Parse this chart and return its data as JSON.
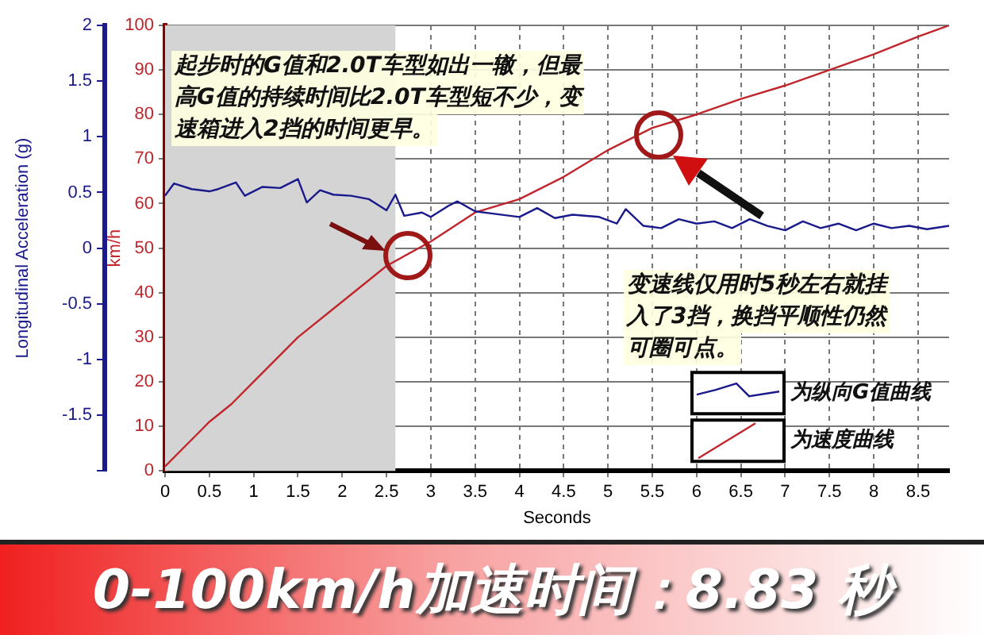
{
  "chart_data": {
    "type": "line",
    "title": "0-100km/h加速时间：8.83 秒",
    "xlabel": "Seconds",
    "ylabel": "Longitudinal Acceleration (g)",
    "y2label": "km/h",
    "xlim": [
      0,
      8.85
    ],
    "xticks": [
      0,
      0.5,
      1,
      1.5,
      2,
      2.5,
      3,
      3.5,
      4,
      4.5,
      5,
      5.5,
      6,
      6.5,
      7,
      7.5,
      8,
      8.5
    ],
    "ylim": [
      -2,
      2
    ],
    "yticks": [
      {
        "value": -2,
        "label": null
      },
      -1.5,
      -1,
      -0.5,
      0,
      0.5,
      1,
      1.5,
      2
    ],
    "y2lim": [
      0,
      100
    ],
    "y2ticks": [
      0,
      10,
      20,
      30,
      40,
      50,
      60,
      70,
      80,
      90,
      100
    ],
    "grid": true,
    "legend": "bottom right",
    "marker": "none",
    "line_style": "solid",
    "bands": [
      {
        "axis": "x",
        "from": 0,
        "to": 2.6,
        "color": "#d4d4d4"
      }
    ],
    "annotations": [
      "起步时的G值和2.0T车型如出一辙，但最高G值的持续时间比2.0T车型短不少，变速箱进入2挡的时间更早。",
      "变速线仅用时5秒左右就挂入了3挡，换挡平顺性仍然可圈可点。"
    ],
    "series": [
      {
        "name": "为纵向G值曲线",
        "color": "#1a1a8c",
        "x": [
          0,
          0.1,
          0.3,
          0.5,
          0.6,
          0.8,
          0.9,
          1.1,
          1.3,
          1.5,
          1.6,
          1.75,
          1.9,
          2.1,
          2.3,
          2.5,
          2.6,
          2.7,
          2.9,
          3,
          3.2,
          3.3,
          3.5,
          3.7,
          4,
          4.2,
          4.4,
          4.6,
          4.9,
          5.1,
          5.2,
          5.4,
          5.6,
          5.8,
          6,
          6.2,
          6.4,
          6.6,
          6.8,
          7,
          7.2,
          7.4,
          7.6,
          7.8,
          8,
          8.2,
          8.4,
          8.6,
          8.85
        ],
        "values": [
          0.47,
          0.58,
          0.53,
          0.51,
          0.53,
          0.59,
          0.47,
          0.55,
          0.54,
          0.62,
          0.41,
          0.52,
          0.48,
          0.47,
          0.44,
          0.34,
          0.48,
          0.29,
          0.32,
          0.28,
          0.38,
          0.42,
          0.33,
          0.31,
          0.28,
          0.36,
          0.27,
          0.3,
          0.28,
          0.22,
          0.35,
          0.2,
          0.18,
          0.26,
          0.22,
          0.24,
          0.18,
          0.26,
          0.2,
          0.16,
          0.24,
          0.18,
          0.22,
          0.16,
          0.22,
          0.18,
          0.2,
          0.17,
          0.2
        ]
      },
      {
        "name": "为速度曲线",
        "color": "#c0262c",
        "axis": "y2",
        "x": [
          0,
          0.25,
          0.5,
          0.75,
          1,
          1.25,
          1.5,
          2,
          2.5,
          3,
          3.5,
          4,
          4.5,
          5,
          5.5,
          6,
          6.5,
          7,
          7.5,
          8,
          8.5,
          8.85
        ],
        "values": [
          1,
          6,
          11,
          15,
          20,
          25,
          30,
          38,
          46,
          51.5,
          58,
          61,
          66,
          72,
          77,
          80,
          83.5,
          86.5,
          90,
          93.5,
          97.5,
          100
        ]
      }
    ]
  }
}
